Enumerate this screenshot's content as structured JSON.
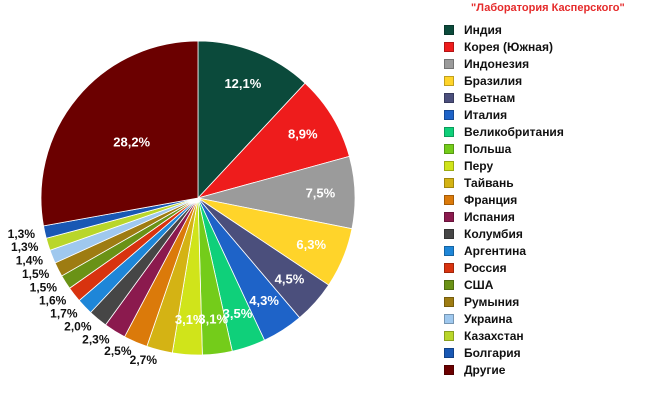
{
  "watermark": "\"Лаборатория Касперского\"",
  "chart_data": {
    "type": "pie",
    "title": "",
    "legend_position": "right",
    "slices": [
      {
        "name": "Индия",
        "value": 12.1,
        "label": "12,1%",
        "color": "#0b4a3b"
      },
      {
        "name": "Корея (Южная)",
        "value": 8.9,
        "label": "8,9%",
        "color": "#ee1c1c"
      },
      {
        "name": "Индонезия",
        "value": 7.5,
        "label": "7,5%",
        "color": "#9b9b9b"
      },
      {
        "name": "Бразилия",
        "value": 6.3,
        "label": "6,3%",
        "color": "#ffd42a"
      },
      {
        "name": "Вьетнам",
        "value": 4.5,
        "label": "4,5%",
        "color": "#4b4f7c"
      },
      {
        "name": "Италия",
        "value": 4.3,
        "label": "4,3%",
        "color": "#1e63c8"
      },
      {
        "name": "Великобритания",
        "value": 3.5,
        "label": "3,5%",
        "color": "#0fd07a"
      },
      {
        "name": "Польша",
        "value": 3.1,
        "label": "3,1%",
        "color": "#74cc1a"
      },
      {
        "name": "Перу",
        "value": 3.1,
        "label": "3,1%",
        "color": "#d0e41a"
      },
      {
        "name": "Тайвань",
        "value": 2.7,
        "label": "2,7%",
        "color": "#d4b314"
      },
      {
        "name": "Франция",
        "value": 2.5,
        "label": "2,5%",
        "color": "#db7a0a"
      },
      {
        "name": "Испания",
        "value": 2.3,
        "label": "2,3%",
        "color": "#8b1a4e"
      },
      {
        "name": "Колумбия",
        "value": 2.0,
        "label": "2,0%",
        "color": "#464646"
      },
      {
        "name": "Аргентина",
        "value": 1.7,
        "label": "1,7%",
        "color": "#1e86d8"
      },
      {
        "name": "Россия",
        "value": 1.6,
        "label": "1,6%",
        "color": "#d8330f"
      },
      {
        "name": "США",
        "value": 1.5,
        "label": "1,5%",
        "color": "#6a9216"
      },
      {
        "name": "Румыния",
        "value": 1.5,
        "label": "1,5%",
        "color": "#9e7c12"
      },
      {
        "name": "Украина",
        "value": 1.4,
        "label": "1,4%",
        "color": "#9fc8ee"
      },
      {
        "name": "Казахстан",
        "value": 1.3,
        "label": "1,3%",
        "color": "#b9d62a"
      },
      {
        "name": "Болгария",
        "value": 1.3,
        "label": "1,3%",
        "color": "#1958b4"
      },
      {
        "name": "Другие",
        "value": 28.2,
        "label": "28,2%",
        "color": "#6b0000"
      }
    ]
  }
}
